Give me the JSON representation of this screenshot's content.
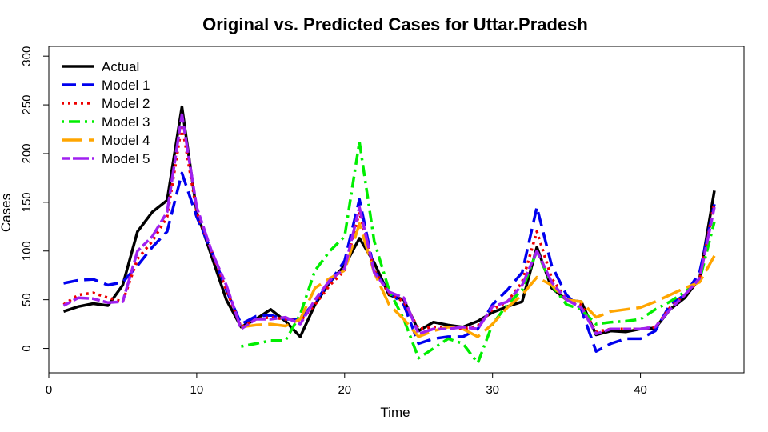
{
  "chart_data": {
    "type": "line",
    "title": "Original vs. Predicted Cases for Uttar.Pradesh",
    "xlabel": "Time",
    "ylabel": "Cases",
    "xlim": [
      0,
      47
    ],
    "ylim": [
      -25,
      310
    ],
    "xticks": [
      0,
      10,
      20,
      30,
      40
    ],
    "yticks": [
      0,
      50,
      100,
      150,
      200,
      250,
      300
    ],
    "grid": false,
    "legend_position": "top-left",
    "series": [
      {
        "name": "Actual",
        "color": "#000000",
        "dash": "solid",
        "x": [
          1,
          2,
          3,
          4,
          5,
          6,
          7,
          8,
          9,
          10,
          11,
          12,
          13,
          14,
          15,
          16,
          17,
          18,
          19,
          20,
          21,
          22,
          23,
          24,
          25,
          26,
          27,
          28,
          29,
          30,
          31,
          32,
          33,
          34,
          35,
          36,
          37,
          38,
          39,
          40,
          41,
          42,
          43,
          44,
          45
        ],
        "values": [
          38,
          43,
          46,
          44,
          65,
          120,
          140,
          152,
          248,
          140,
          95,
          50,
          22,
          30,
          40,
          28,
          12,
          45,
          68,
          85,
          113,
          88,
          55,
          50,
          18,
          27,
          24,
          22,
          28,
          37,
          43,
          48,
          104,
          62,
          50,
          48,
          14,
          18,
          17,
          20,
          21,
          40,
          52,
          72,
          162
        ]
      },
      {
        "name": "Model 1",
        "color": "#0000ee",
        "dash": "long-dash",
        "x": [
          1,
          2,
          3,
          4,
          5,
          6,
          7,
          8,
          9,
          10,
          11,
          12,
          13,
          14,
          15,
          16,
          17,
          18,
          19,
          20,
          21,
          22,
          23,
          24,
          25,
          26,
          27,
          28,
          29,
          30,
          31,
          32,
          33,
          34,
          35,
          36,
          37,
          38,
          39,
          40,
          41,
          42,
          43,
          44,
          45
        ],
        "values": [
          67,
          70,
          71,
          65,
          68,
          85,
          104,
          120,
          180,
          135,
          100,
          60,
          25,
          33,
          34,
          30,
          30,
          48,
          68,
          90,
          153,
          80,
          58,
          45,
          5,
          10,
          12,
          12,
          20,
          45,
          60,
          78,
          145,
          85,
          55,
          40,
          -3,
          5,
          10,
          10,
          18,
          45,
          55,
          78,
          148
        ]
      },
      {
        "name": "Model 2",
        "color": "#ee0000",
        "dash": "dotted",
        "x": [
          1,
          2,
          3,
          4,
          5,
          6,
          7,
          8,
          9,
          10,
          11,
          12,
          13,
          14,
          15,
          16,
          17,
          18,
          19,
          20,
          21,
          22,
          23,
          24,
          25,
          26,
          27,
          28,
          29,
          30,
          31,
          32,
          33,
          34,
          35,
          36,
          37,
          38,
          39,
          40,
          41,
          42,
          43,
          44,
          45
        ],
        "values": [
          45,
          55,
          57,
          52,
          48,
          92,
          110,
          135,
          230,
          140,
          100,
          60,
          22,
          30,
          32,
          30,
          28,
          45,
          65,
          80,
          140,
          80,
          56,
          48,
          20,
          22,
          22,
          20,
          23,
          40,
          48,
          68,
          120,
          72,
          50,
          45,
          17,
          20,
          20,
          20,
          22,
          42,
          55,
          70,
          150
        ]
      },
      {
        "name": "Model 3",
        "color": "#00ee00",
        "dash": "dot-dash",
        "x": [
          13,
          14,
          15,
          16,
          17,
          18,
          19,
          20,
          21,
          22,
          23,
          24,
          25,
          26,
          27,
          28,
          29,
          30,
          31,
          32,
          33,
          34,
          35,
          36,
          37,
          38,
          39,
          40,
          41,
          42,
          43,
          44,
          45
        ],
        "values": [
          2,
          5,
          8,
          8,
          35,
          80,
          100,
          115,
          212,
          110,
          60,
          30,
          -10,
          0,
          10,
          5,
          -15,
          25,
          45,
          60,
          100,
          65,
          45,
          40,
          25,
          27,
          28,
          30,
          40,
          48,
          58,
          70,
          130
        ]
      },
      {
        "name": "Model 4",
        "color": "#ffa500",
        "dash": "long-dash-wide",
        "x": [
          13,
          14,
          15,
          16,
          17,
          18,
          19,
          20,
          21,
          22,
          23,
          24,
          25,
          26,
          27,
          28,
          29,
          30,
          31,
          32,
          33,
          34,
          35,
          36,
          37,
          38,
          39,
          40,
          41,
          42,
          43,
          44,
          45
        ],
        "values": [
          22,
          24,
          25,
          23,
          30,
          62,
          72,
          80,
          128,
          78,
          45,
          30,
          12,
          18,
          22,
          20,
          12,
          25,
          42,
          55,
          73,
          65,
          50,
          48,
          32,
          38,
          40,
          42,
          48,
          55,
          62,
          68,
          95
        ]
      },
      {
        "name": "Model 5",
        "color": "#a020f0",
        "dash": "two-dash",
        "x": [
          1,
          2,
          3,
          4,
          5,
          6,
          7,
          8,
          9,
          10,
          11,
          12,
          13,
          14,
          15,
          16,
          17,
          18,
          19,
          20,
          21,
          22,
          23,
          24,
          25,
          26,
          27,
          28,
          29,
          30,
          31,
          32,
          33,
          34,
          35,
          36,
          37,
          38,
          39,
          40,
          41,
          42,
          43,
          44,
          45
        ],
        "values": [
          44,
          52,
          51,
          47,
          48,
          100,
          115,
          140,
          240,
          145,
          100,
          65,
          20,
          30,
          30,
          32,
          25,
          50,
          70,
          82,
          145,
          78,
          58,
          52,
          15,
          20,
          20,
          22,
          20,
          43,
          48,
          65,
          100,
          68,
          50,
          42,
          15,
          20,
          20,
          20,
          22,
          40,
          55,
          72,
          145
        ]
      }
    ]
  }
}
